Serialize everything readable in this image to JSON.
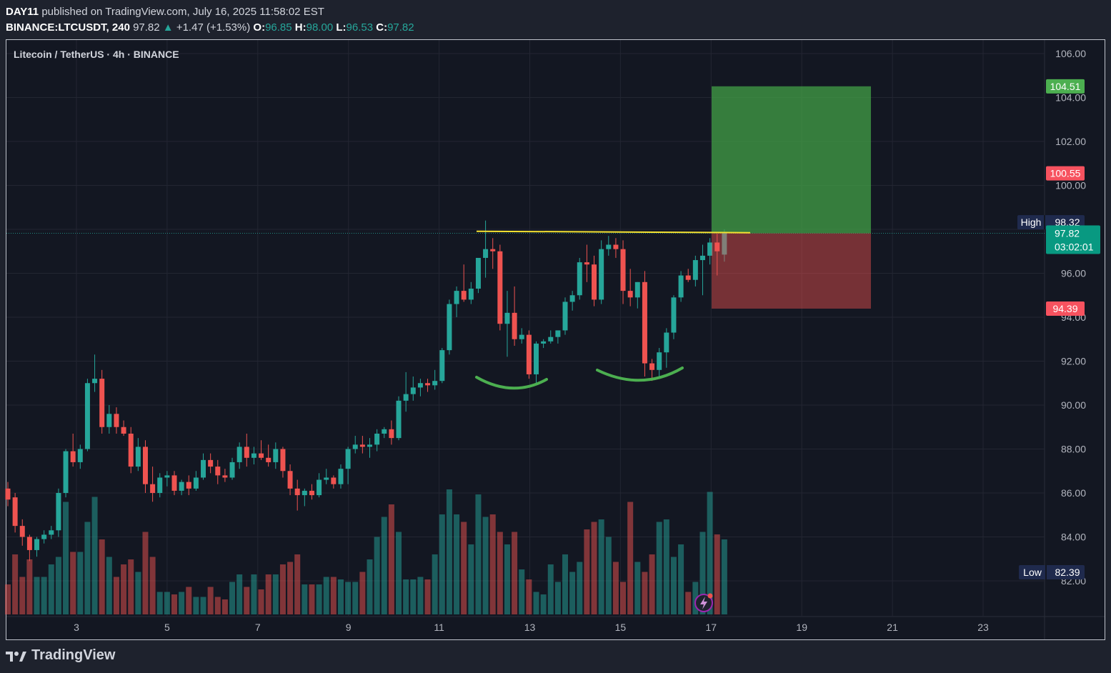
{
  "header": {
    "publisher": "DAY11",
    "published_text": "published on TradingView.com, July 16, 2025 11:58:02 EST",
    "symbol": "BINANCE:LTCUSDT, 240",
    "last": "97.82",
    "change": "+1.47 (+1.53%)",
    "o_label": "O:",
    "o_value": "96.85",
    "h_label": "H:",
    "h_value": "98.00",
    "l_label": "L:",
    "l_value": "96.53",
    "c_label": "C:",
    "c_value": "97.82"
  },
  "legend_title": "Litecoin / TetherUS · 4h · BINANCE",
  "footer": {
    "brand": "TradingView"
  },
  "colors": {
    "up": "#26a69a",
    "down": "#ef5350",
    "background": "#131722",
    "grid": "#232632",
    "neckline": "#f5e130",
    "pattern": "#4caf50"
  },
  "chart_data": {
    "type": "candlestick",
    "symbol": "LTCUSDT",
    "interval": "4h",
    "ylim": [
      80.5,
      106.6
    ],
    "y_ticks": [
      "106.00",
      "104.00",
      "102.00",
      "100.00",
      "98.00",
      "96.00",
      "94.00",
      "92.00",
      "90.00",
      "88.00",
      "86.00",
      "84.00",
      "82.00"
    ],
    "x_ticks": [
      "3",
      "5",
      "7",
      "9",
      "11",
      "13",
      "15",
      "17",
      "19",
      "21",
      "23"
    ],
    "price_labels": {
      "target": "104.51",
      "upper": "100.55",
      "high_label": "High",
      "high": "98.32",
      "neckline": "97.88",
      "last": "97.82",
      "countdown": "03:02:01",
      "stop": "94.39",
      "low_label": "Low",
      "low": "82.39"
    },
    "position": {
      "entry": 97.82,
      "target": 104.51,
      "stop": 94.39
    },
    "neckline_level": 97.88,
    "candles": [
      [
        86.2,
        86.5,
        85.4,
        85.7
      ],
      [
        85.8,
        86.0,
        84.2,
        84.5
      ],
      [
        84.5,
        84.8,
        83.6,
        84.0
      ],
      [
        84.0,
        84.1,
        82.9,
        83.4
      ],
      [
        83.4,
        84.0,
        83.1,
        83.9
      ],
      [
        83.9,
        84.3,
        83.7,
        84.1
      ],
      [
        84.1,
        84.5,
        83.9,
        84.3
      ],
      [
        84.3,
        86.2,
        84.0,
        86.0
      ],
      [
        86.0,
        88.0,
        85.8,
        87.9
      ],
      [
        87.9,
        88.7,
        87.2,
        87.4
      ],
      [
        87.4,
        88.2,
        87.1,
        88.0
      ],
      [
        88.0,
        91.2,
        87.9,
        91.0
      ],
      [
        91.0,
        92.3,
        90.6,
        91.2
      ],
      [
        91.2,
        91.6,
        88.7,
        89.0
      ],
      [
        89.0,
        90.0,
        88.7,
        89.6
      ],
      [
        89.6,
        89.9,
        88.7,
        89.0
      ],
      [
        89.0,
        89.3,
        88.6,
        88.7
      ],
      [
        88.7,
        89.0,
        86.9,
        87.2
      ],
      [
        87.2,
        88.5,
        87.0,
        88.1
      ],
      [
        88.1,
        88.4,
        86.0,
        86.4
      ],
      [
        86.4,
        87.2,
        85.6,
        86.0
      ],
      [
        86.0,
        86.9,
        85.8,
        86.7
      ],
      [
        86.7,
        87.0,
        86.3,
        86.8
      ],
      [
        86.8,
        87.0,
        85.9,
        86.1
      ],
      [
        86.1,
        86.6,
        85.9,
        86.5
      ],
      [
        86.5,
        86.8,
        85.9,
        86.2
      ],
      [
        86.2,
        87.0,
        86.1,
        86.7
      ],
      [
        86.7,
        87.8,
        86.6,
        87.5
      ],
      [
        87.5,
        87.8,
        86.9,
        87.2
      ],
      [
        87.2,
        87.5,
        86.4,
        86.8
      ],
      [
        86.8,
        87.1,
        86.5,
        86.7
      ],
      [
        86.7,
        87.6,
        86.6,
        87.4
      ],
      [
        87.4,
        88.3,
        87.1,
        88.1
      ],
      [
        88.1,
        88.7,
        87.2,
        87.6
      ],
      [
        87.6,
        88.1,
        87.3,
        87.8
      ],
      [
        87.8,
        88.4,
        87.5,
        87.6
      ],
      [
        87.6,
        88.2,
        87.2,
        87.4
      ],
      [
        87.4,
        88.3,
        87.1,
        88.0
      ],
      [
        88.0,
        88.1,
        86.7,
        87.0
      ],
      [
        87.0,
        87.3,
        85.9,
        86.2
      ],
      [
        86.2,
        86.6,
        85.2,
        85.9
      ],
      [
        85.9,
        86.2,
        85.4,
        86.1
      ],
      [
        86.1,
        86.4,
        85.7,
        85.9
      ],
      [
        85.9,
        86.9,
        85.8,
        86.6
      ],
      [
        86.6,
        87.1,
        86.4,
        86.7
      ],
      [
        86.7,
        86.8,
        86.2,
        86.4
      ],
      [
        86.4,
        87.3,
        86.2,
        87.1
      ],
      [
        87.1,
        88.1,
        86.4,
        88.0
      ],
      [
        88.0,
        88.6,
        87.8,
        88.2
      ],
      [
        88.2,
        88.6,
        87.8,
        88.1
      ],
      [
        88.1,
        88.5,
        87.6,
        88.2
      ],
      [
        88.2,
        88.9,
        87.9,
        88.7
      ],
      [
        88.7,
        89.0,
        88.5,
        88.9
      ],
      [
        88.9,
        89.3,
        88.2,
        88.5
      ],
      [
        88.5,
        90.4,
        88.4,
        90.2
      ],
      [
        90.2,
        91.5,
        89.7,
        90.5
      ],
      [
        90.5,
        91.3,
        90.2,
        90.8
      ],
      [
        90.8,
        91.2,
        90.4,
        91.0
      ],
      [
        91.0,
        91.2,
        90.6,
        90.9
      ],
      [
        90.9,
        91.6,
        90.7,
        91.1
      ],
      [
        91.1,
        92.6,
        91.0,
        92.5
      ],
      [
        92.5,
        94.8,
        92.3,
        94.6
      ],
      [
        94.6,
        95.4,
        94.0,
        95.2
      ],
      [
        95.2,
        96.4,
        94.7,
        94.8
      ],
      [
        94.8,
        95.6,
        94.6,
        95.3
      ],
      [
        95.3,
        96.6,
        95.1,
        96.7
      ],
      [
        96.7,
        98.4,
        95.8,
        97.1
      ],
      [
        97.1,
        97.6,
        96.2,
        97.0
      ],
      [
        97.0,
        97.3,
        93.4,
        93.7
      ],
      [
        93.7,
        95.2,
        92.2,
        94.2
      ],
      [
        94.2,
        95.4,
        92.7,
        93.0
      ],
      [
        93.0,
        93.5,
        92.8,
        93.2
      ],
      [
        93.2,
        93.4,
        91.2,
        91.4
      ],
      [
        91.4,
        92.9,
        91.0,
        92.8
      ],
      [
        92.8,
        93.0,
        92.6,
        92.9
      ],
      [
        92.9,
        93.4,
        92.8,
        93.1
      ],
      [
        93.1,
        93.4,
        92.8,
        93.4
      ],
      [
        93.4,
        94.9,
        93.2,
        94.7
      ],
      [
        94.7,
        95.2,
        94.3,
        95.0
      ],
      [
        95.0,
        96.7,
        94.8,
        96.5
      ],
      [
        96.5,
        97.3,
        95.6,
        96.4
      ],
      [
        96.4,
        96.8,
        94.5,
        94.8
      ],
      [
        94.8,
        97.5,
        94.6,
        97.1
      ],
      [
        97.1,
        97.7,
        96.8,
        97.3
      ],
      [
        97.3,
        97.6,
        96.7,
        97.1
      ],
      [
        97.1,
        97.5,
        94.6,
        95.2
      ],
      [
        95.2,
        96.2,
        94.5,
        94.9
      ],
      [
        94.9,
        95.6,
        94.4,
        95.6
      ],
      [
        95.6,
        96.1,
        91.3,
        91.9
      ],
      [
        91.9,
        92.1,
        91.1,
        91.6
      ],
      [
        91.6,
        92.6,
        91.2,
        92.4
      ],
      [
        92.4,
        93.5,
        91.7,
        93.3
      ],
      [
        93.3,
        95.0,
        93.0,
        94.9
      ],
      [
        94.9,
        96.1,
        94.7,
        95.9
      ],
      [
        95.9,
        96.2,
        95.6,
        95.7
      ],
      [
        95.7,
        96.8,
        95.4,
        96.6
      ],
      [
        96.6,
        97.3,
        95.0,
        96.8
      ],
      [
        96.8,
        97.6,
        96.4,
        97.4
      ],
      [
        97.4,
        97.8,
        95.9,
        97.0
      ],
      [
        96.85,
        98.0,
        96.53,
        97.82
      ]
    ],
    "volumes": [
      1.2,
      2.4,
      1.5,
      2.2,
      1.5,
      1.5,
      2.0,
      2.3,
      4.5,
      2.5,
      2.5,
      3.7,
      4.7,
      3.0,
      2.3,
      1.5,
      2.0,
      2.2,
      1.7,
      3.3,
      2.3,
      0.9,
      0.9,
      0.8,
      0.9,
      1.1,
      0.7,
      0.7,
      1.1,
      0.7,
      0.6,
      1.3,
      1.6,
      1.1,
      1.6,
      1.0,
      1.6,
      1.6,
      2.0,
      2.1,
      2.4,
      1.2,
      1.2,
      1.2,
      1.5,
      1.5,
      1.4,
      1.3,
      1.3,
      1.7,
      2.2,
      3.1,
      3.9,
      4.4,
      3.3,
      1.4,
      1.4,
      1.5,
      1.4,
      2.4,
      4.0,
      5.0,
      4.0,
      3.7,
      2.8,
      4.8,
      3.9,
      4.0,
      3.3,
      2.8,
      3.3,
      1.8,
      1.4,
      0.9,
      0.8,
      2.0,
      1.3,
      2.4,
      1.7,
      2.1,
      3.4,
      3.7,
      3.8,
      3.1,
      2.1,
      1.3,
      4.5,
      2.1,
      1.7,
      2.4,
      3.7,
      3.8,
      2.3,
      2.8,
      0.9,
      1.3,
      3.3,
      4.9,
      3.2,
      3.0
    ]
  }
}
